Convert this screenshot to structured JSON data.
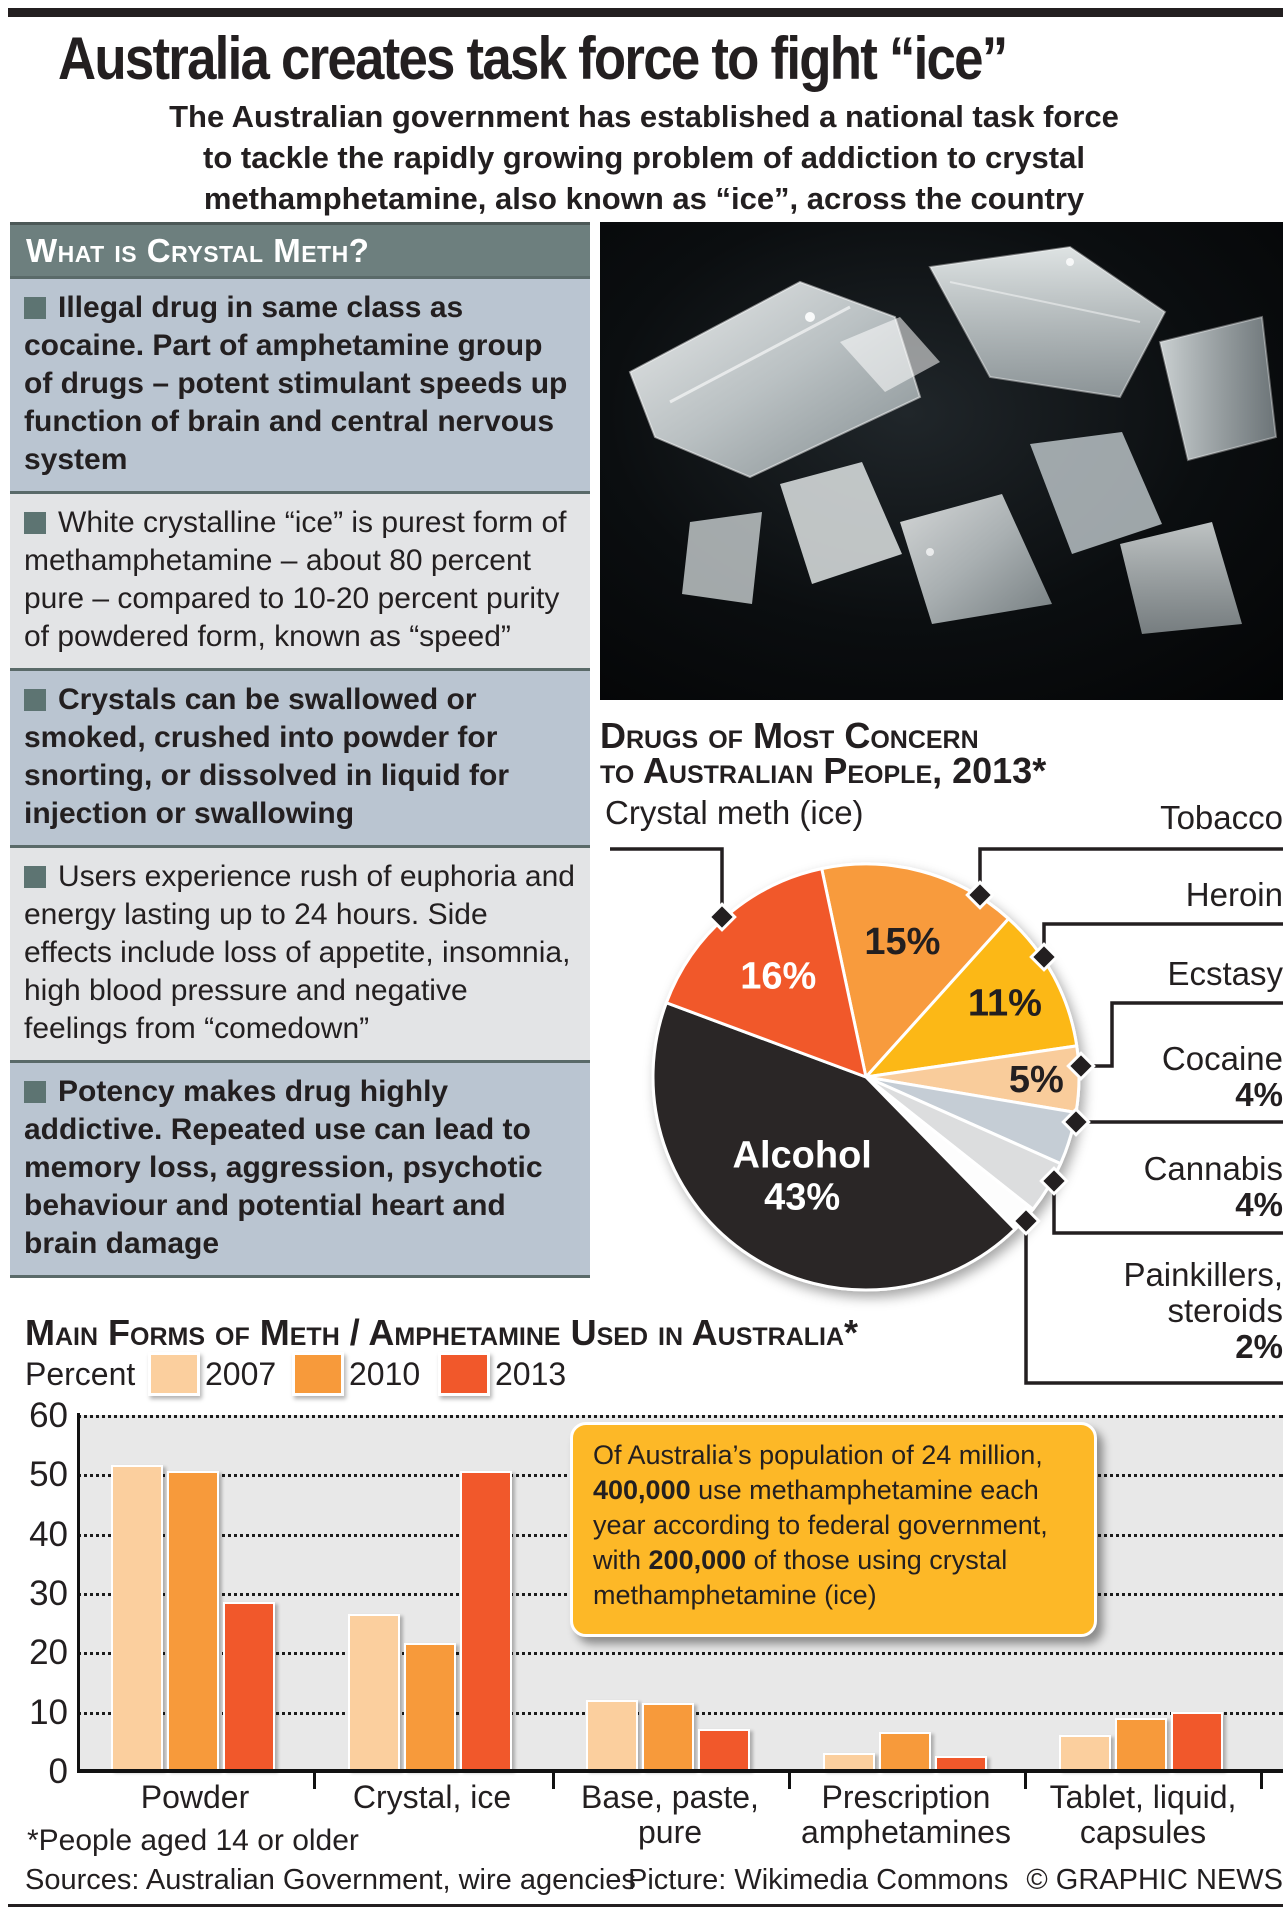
{
  "page": {
    "title": "Australia creates task force to fight “ice”",
    "subtitle_lines": [
      "The Australian government has established a national task force",
      "to tackle the rapidly growing problem of addiction to crystal",
      "methamphetamine, also known as “ice”, across the country"
    ]
  },
  "what_is_box": {
    "heading": "What is Crystal Meth?",
    "bullets": [
      {
        "text": "Illegal drug in same class as cocaine. Part of amphetamine group of drugs – potent stimulant speeds up function of brain and central nervous system",
        "strong": true
      },
      {
        "text": "White crystalline “ice” is purest form of methamphetamine – about 80 percent pure – compared to 10-20 percent purity of powdered form, known as “speed”",
        "strong": false
      },
      {
        "text": "Crystals can be swallowed or smoked, crushed into powder for snorting, or dissolved in liquid for injection or swallowing",
        "strong": true
      },
      {
        "text": "Users experience rush of euphoria and energy lasting up to 24 hours. Side effects include loss of appetite, insomnia, high blood pressure and negative feelings from “comedown”",
        "strong": false
      },
      {
        "text": "Potency makes drug highly addictive. Repeated use can lead to memory loss, aggression, psychotic behaviour and potential heart and brain damage",
        "strong": true
      }
    ]
  },
  "pie_section": {
    "heading_line1": "Drugs of Most Concern",
    "heading_line2": "to Australian People, 2013*",
    "left_label": "Crystal meth (ice)",
    "right_labels": [
      {
        "line1": "Tobacco",
        "line2": "",
        "value": ""
      },
      {
        "line1": "Heroin",
        "line2": "",
        "value": ""
      },
      {
        "line1": "Ecstasy",
        "line2": "",
        "value": ""
      },
      {
        "line1": "Cocaine",
        "line2": "",
        "value": "4%"
      },
      {
        "line1": "Cannabis",
        "line2": "",
        "value": "4%"
      },
      {
        "line1": "Painkillers,",
        "line2": "steroids",
        "value": "2%"
      }
    ]
  },
  "chart_data": [
    {
      "type": "pie",
      "title": "Drugs of Most Concern to Australian People, 2013*",
      "start_angle_deg": -12,
      "legend_position": "callout-labels",
      "slices": [
        {
          "label": "Tobacco",
          "value": 15,
          "color": "#f89b3d",
          "inner_label_lines": [
            "15%"
          ],
          "inner_label_color": "#231f20",
          "label_r": 0.66
        },
        {
          "label": "Heroin",
          "value": 11,
          "color": "#fcb813",
          "inner_label_lines": [
            "11%"
          ],
          "inner_label_color": "#231f20",
          "label_r": 0.74
        },
        {
          "label": "Ecstasy",
          "value": 5,
          "color": "#f9cc9b",
          "inner_label_lines": [
            "5%"
          ],
          "inner_label_color": "#231f20",
          "label_r": 0.8
        },
        {
          "label": "Cocaine",
          "value": 4,
          "color": "#c5cdd5",
          "inner_label_lines": [],
          "inner_label_color": "",
          "label_r": 0
        },
        {
          "label": "Cannabis",
          "value": 4,
          "color": "#dcddde",
          "inner_label_lines": [],
          "inner_label_color": "",
          "label_r": 0
        },
        {
          "label": "Painkillers, steroids",
          "value": 2,
          "color": "#fdfdfd",
          "inner_label_lines": [],
          "inner_label_color": "",
          "label_r": 0
        },
        {
          "label": "Alcohol",
          "value": 43,
          "color": "#2a2627",
          "inner_label_lines": [
            "Alcohol",
            "43%"
          ],
          "inner_label_color": "#ffffff",
          "label_r": 0.55
        },
        {
          "label": "Crystal meth (ice)",
          "value": 16,
          "color": "#f1582b",
          "inner_label_lines": [
            "16%"
          ],
          "inner_label_color": "#ffffff",
          "label_r": 0.63
        }
      ]
    },
    {
      "type": "bar",
      "title": "Main Forms of Meth / Amphetamine Used in Australia*",
      "xlabel": "",
      "ylabel": "Percent",
      "ylim": [
        0,
        60
      ],
      "ytick_step": 10,
      "grid": true,
      "legend_position": "top",
      "categories": [
        "Powder",
        "Crystal, ice",
        "Base, paste, pure",
        "Prescription amphetamines",
        "Tablet, liquid, capsules"
      ],
      "category_label_lines": [
        [
          "Powder"
        ],
        [
          "Crystal, ice"
        ],
        [
          "Base, paste,",
          "pure"
        ],
        [
          "Prescription",
          "amphetamines"
        ],
        [
          "Tablet, liquid,",
          "capsules"
        ]
      ],
      "series": [
        {
          "name": "2007",
          "color": "#fbcf9e",
          "values": [
            51.5,
            26.5,
            12,
            3,
            6
          ]
        },
        {
          "name": "2010",
          "color": "#f79a3b",
          "values": [
            50.5,
            21.5,
            11.5,
            6.5,
            9
          ]
        },
        {
          "name": "2013",
          "color": "#f1582b",
          "values": [
            28.5,
            50.5,
            7,
            2.5,
            10
          ]
        }
      ]
    }
  ],
  "main_forms": {
    "heading": "Main Forms of Meth / Amphetamine Used in Australia*",
    "percent_label": "Percent",
    "legend": [
      {
        "label": "2007",
        "color": "#fbcf9e"
      },
      {
        "label": "2010",
        "color": "#f79a3b"
      },
      {
        "label": "2013",
        "color": "#f1582b"
      }
    ]
  },
  "callout": {
    "segments": [
      {
        "text": "Of Australia’s population of 24 million, "
      },
      {
        "text": "400,000"
      },
      {
        "text": " use methamphetamine each year according to federal government, with "
      },
      {
        "text": "200,000"
      },
      {
        "text": " of those using crystal methamphetamine (ice)"
      }
    ]
  },
  "footnote": "*People aged 14 or older",
  "footer": {
    "sources": "Sources: Australian Government, wire agencies",
    "picture": "Picture: Wikimedia Commons",
    "credit": "© GRAPHIC NEWS"
  },
  "colors": {
    "accent_2013": "#f1582b",
    "accent_2010": "#f79a3b",
    "accent_2007": "#fbcf9e",
    "header_band": "#6d7f7e",
    "bullet_band_blue": "#bac5d1",
    "bullet_band_gray": "#e3e4e6",
    "callout_bg": "#fdb827",
    "alcohol_slice": "#2a2627"
  }
}
